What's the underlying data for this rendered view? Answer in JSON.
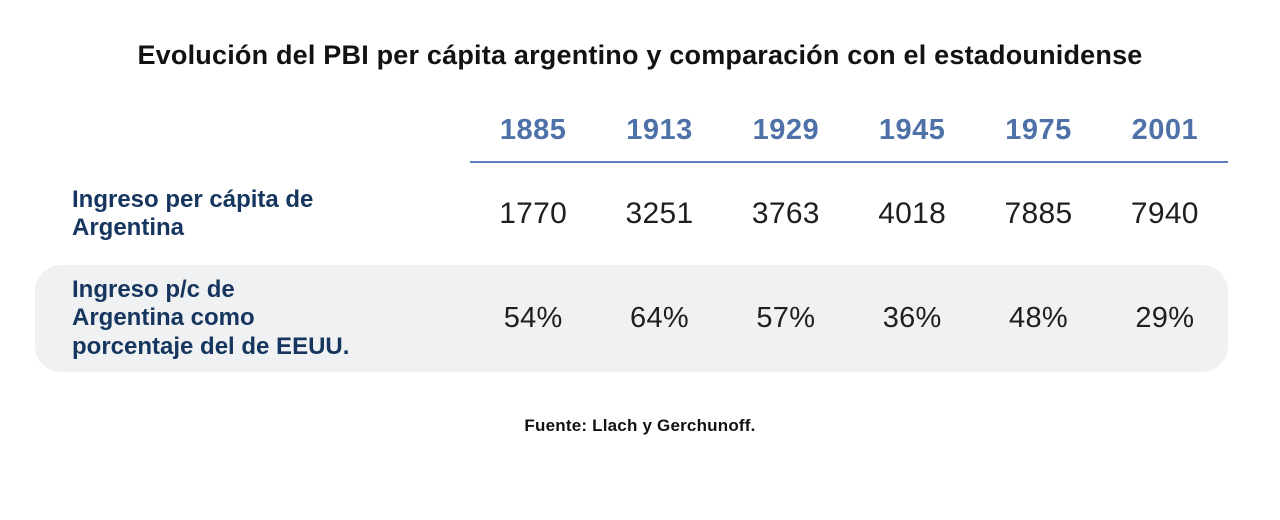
{
  "chart_data": {
    "type": "table",
    "title": "Evolución del PBI per cápita argentino y comparación con el estadounidense",
    "categories": [
      "1885",
      "1913",
      "1929",
      "1945",
      "1975",
      "2001"
    ],
    "series": [
      {
        "name": "Ingreso per cápita de Argentina",
        "label_lines": [
          "Ingreso per cápita de",
          "Argentina"
        ],
        "values": [
          1770,
          3251,
          3763,
          4018,
          7885,
          7940
        ],
        "display": [
          "1770",
          "3251",
          "3763",
          "4018",
          "7885",
          "7940"
        ]
      },
      {
        "name": "Ingreso p/c de Argentina como porcentaje del de EEUU.",
        "label_lines": [
          "Ingreso p/c de",
          "Argentina como",
          "porcentaje del de EEUU."
        ],
        "values": [
          54,
          64,
          57,
          36,
          48,
          29
        ],
        "unit": "%",
        "display": [
          "54%",
          "64%",
          "57%",
          "36%",
          "48%",
          "29%"
        ]
      }
    ],
    "source": "Fuente: Llach y Gerchunoff.",
    "legend": "none",
    "grid": "off"
  },
  "colors": {
    "accent-blue": "#4e72a7",
    "line-blue": "#5c80bd",
    "navy": "#16365f",
    "band": "#f0f1f2",
    "ink": "#121212",
    "value-ink": "#1f1f1f"
  }
}
